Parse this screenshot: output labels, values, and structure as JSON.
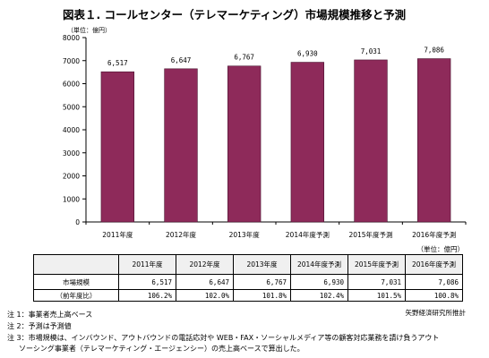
{
  "title": "図表１. コールセンター（テレマーケティング）市場規模推移と予測",
  "unit_top": "（単位：億円）",
  "unit_table": "（単位：億円）",
  "colors": {
    "bar": "#8e2a5a",
    "bar_stroke": "#4a1530",
    "axis": "#000000",
    "grid": "#b0b0b0",
    "table_head": "#f0f0f0"
  },
  "chart_data": {
    "type": "bar",
    "categories": [
      "2011年度",
      "2012年度",
      "2013年度",
      "2014年度予測",
      "2015年度予測",
      "2016年度予測"
    ],
    "values": [
      6517,
      6647,
      6767,
      6930,
      7031,
      7086
    ],
    "data_labels": [
      "6,517",
      "6,647",
      "6,767",
      "6,930",
      "7,031",
      "7,086"
    ],
    "ylim": [
      0,
      8000
    ],
    "yticks": [
      "0",
      "1000",
      "2000",
      "3000",
      "4000",
      "5000",
      "6000",
      "7000",
      "8000"
    ],
    "ylabel": "（単位：億円）",
    "grid": false,
    "legend": "none"
  },
  "table": {
    "headers": [
      "2011年度",
      "2012年度",
      "2013年度",
      "2014年度予測",
      "2015年度予測",
      "2016年度予測"
    ],
    "rows": [
      {
        "label": "市場規模",
        "values": [
          "6,517",
          "6,647",
          "6,767",
          "6,930",
          "7,031",
          "7,086"
        ]
      },
      {
        "label": "（前年度比）",
        "values": [
          "106.2%",
          "102.0%",
          "101.8%",
          "102.4%",
          "101.5%",
          "100.8%"
        ]
      }
    ]
  },
  "source": "矢野経済研究所推計",
  "notes": [
    "注 1：事業者売上高ベース",
    "注 2：予測は予測値",
    "注 3：市場規模は、インバウンド、アウトバウンドの電話応対や WEB・FAX・ソーシャルメディア等の顧客対応業務を請け負うアウト",
    "ソーシング事業者（テレマーケティング・エージェンシー）の売上高ベースで算出した。"
  ]
}
